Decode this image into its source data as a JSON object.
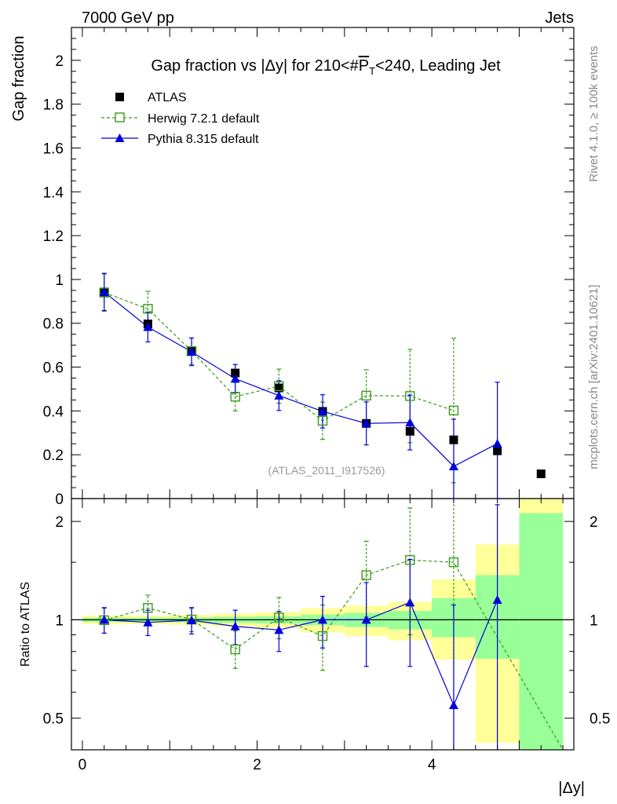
{
  "header": {
    "beam": "7000 GeV pp",
    "process": "Jets"
  },
  "side_labels": {
    "rivet": "Rivet 4.1.0, ≥ 100k events",
    "mcplots": "mcplots.cern.ch [arXiv:2401.10621]"
  },
  "chart_data": [
    {
      "id": "main",
      "type": "scatter",
      "title": "Gap fraction vs |Δy| for 210<#P̅T<240, Leading Jet",
      "title_parts": {
        "a": "Gap fraction vs |Δy| for 210<#",
        "p": "P",
        "t": "T",
        "b": "<240, Leading Jet"
      },
      "ylabel": "Gap fraction",
      "xlabel": "",
      "xlim": [
        -0.125,
        5.625
      ],
      "ylim": [
        0,
        2.15
      ],
      "yticks": [
        0,
        0.2,
        0.4,
        0.6,
        0.8,
        1,
        1.2,
        1.4,
        1.6,
        1.8,
        2
      ],
      "ytick_labels": [
        "0",
        "0.2",
        "0.4",
        "0.6",
        "0.8",
        "1",
        "1.2",
        "1.4",
        "1.6",
        "1.8",
        "2"
      ],
      "analysis_label": "(ATLAS_2011_I917526)",
      "legend": [
        "ATLAS",
        "Herwig 7.2.1 default",
        "Pythia 8.315 default"
      ],
      "series": [
        {
          "name": "ATLAS",
          "color": "#000000",
          "x": [
            0.25,
            0.75,
            1.25,
            1.75,
            2.25,
            2.75,
            3.25,
            3.75,
            4.25,
            4.75,
            5.25
          ],
          "y": [
            0.943,
            0.797,
            0.672,
            0.573,
            0.505,
            0.398,
            0.343,
            0.307,
            0.268,
            0.218,
            0.113
          ]
        },
        {
          "name": "Herwig 7.2.1 default",
          "color": "#3a9a1a",
          "x": [
            0.25,
            0.75,
            1.25,
            1.75,
            2.25,
            2.75,
            3.25,
            3.75,
            4.25
          ],
          "y": [
            0.94,
            0.866,
            0.673,
            0.465,
            0.513,
            0.355,
            0.47,
            0.468,
            0.402
          ],
          "err": [
            0.085,
            0.08,
            0.06,
            0.065,
            0.078,
            0.085,
            0.118,
            0.213,
            0.33
          ]
        },
        {
          "name": "Pythia 8.315 default",
          "color": "#0000dd",
          "x": [
            0.25,
            0.75,
            1.25,
            1.75,
            2.25,
            2.75,
            3.25,
            3.75,
            4.25,
            4.75
          ],
          "y": [
            0.943,
            0.783,
            0.67,
            0.547,
            0.47,
            0.398,
            0.343,
            0.347,
            0.147,
            0.251
          ],
          "err": [
            0.085,
            0.068,
            0.063,
            0.065,
            0.068,
            0.076,
            0.098,
            0.125,
            0.215,
            0.28
          ]
        }
      ]
    },
    {
      "id": "ratio",
      "type": "line",
      "ylabel": "Ratio to ATLAS",
      "xlabel": "|Δy|",
      "xlim": [
        -0.125,
        5.625
      ],
      "ylim": [
        0.4,
        2.35
      ],
      "yscale": "log",
      "xticks": [
        0,
        2,
        4
      ],
      "xtick_labels": [
        "0",
        "2",
        "4"
      ],
      "yticks": [
        0.5,
        1,
        2
      ],
      "ytick_labels": [
        "0.5",
        "1",
        "2"
      ],
      "bands": {
        "x_edges": [
          0,
          0.5,
          1,
          1.5,
          2,
          2.5,
          3,
          3.5,
          4,
          4.5,
          5,
          5.5
        ],
        "green_low": [
          0.985,
          0.985,
          0.983,
          0.978,
          0.975,
          0.962,
          0.95,
          0.935,
          0.885,
          0.76,
          0.4
        ],
        "green_high": [
          1.015,
          1.015,
          1.017,
          1.022,
          1.025,
          1.038,
          1.05,
          1.065,
          1.165,
          1.37,
          2.12
        ],
        "yellow_low": [
          0.97,
          0.97,
          0.965,
          0.955,
          0.945,
          0.915,
          0.89,
          0.865,
          0.755,
          0.42,
          0.4
        ],
        "yellow_high": [
          1.03,
          1.03,
          1.035,
          1.045,
          1.055,
          1.085,
          1.105,
          1.135,
          1.33,
          1.7,
          2.35
        ]
      },
      "series": [
        {
          "name": "Herwig 7.2.1 default",
          "color": "#3a9a1a",
          "x": [
            0.25,
            0.75,
            1.25,
            1.75,
            2.25,
            2.75,
            3.25,
            3.75,
            4.25
          ],
          "y": [
            0.997,
            1.087,
            1.002,
            0.812,
            1.016,
            0.892,
            1.37,
            1.524,
            1.5
          ],
          "lo": [
            0.91,
            0.985,
            0.92,
            0.71,
            0.875,
            0.7,
            1.02,
            0.9,
            0.4
          ],
          "hi": [
            1.085,
            1.19,
            1.085,
            0.925,
            1.17,
            1.11,
            1.74,
            2.2,
            2.35
          ],
          "tail_to": [
            5.5,
            0.4
          ]
        },
        {
          "name": "Pythia 8.315 default",
          "color": "#0000dd",
          "x": [
            0.25,
            0.75,
            1.25,
            1.75,
            2.25,
            2.75,
            3.25,
            3.75,
            4.25,
            4.75
          ],
          "y": [
            1.0,
            0.982,
            0.997,
            0.955,
            0.931,
            1.0,
            1.0,
            1.13,
            0.548,
            1.151
          ],
          "lo": [
            0.91,
            0.895,
            0.905,
            0.84,
            0.8,
            0.82,
            0.72,
            0.72,
            0.4,
            0.4
          ],
          "hi": [
            1.09,
            1.07,
            1.09,
            1.07,
            1.06,
            1.18,
            1.3,
            1.53,
            1.11,
            2.25
          ]
        }
      ]
    }
  ]
}
